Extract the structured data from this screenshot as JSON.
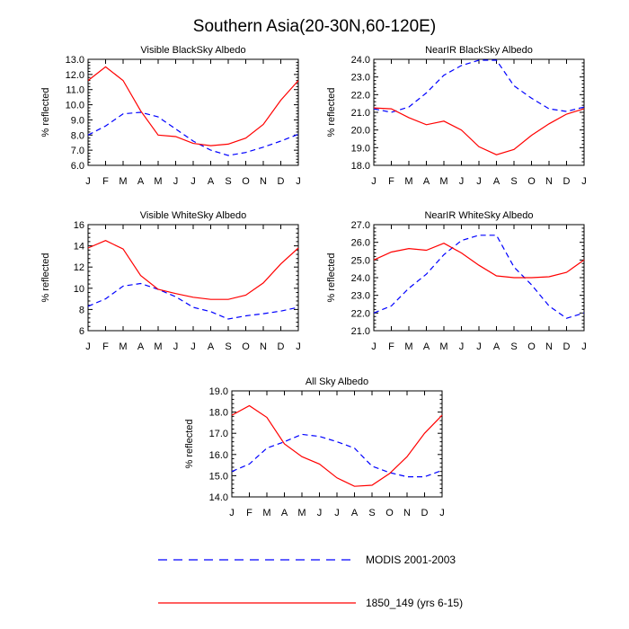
{
  "title": "Southern Asia(20-30N,60-120E)",
  "legend": {
    "items": [
      {
        "label": "MODIS 2001-2003",
        "color": "#0000ff",
        "dash": "dashed"
      },
      {
        "label": "1850_149 (yrs 6-15)",
        "color": "#ff0000",
        "dash": "solid"
      }
    ]
  },
  "chart_data": [
    {
      "type": "line",
      "title": "Visible BlackSky Albedo",
      "ylabel": "% reflected",
      "categories": [
        "J",
        "F",
        "M",
        "A",
        "M",
        "J",
        "J",
        "A",
        "S",
        "O",
        "N",
        "D",
        "J"
      ],
      "ylim": [
        6.0,
        13.0
      ],
      "yticks": [
        "6.0",
        "7.0",
        "8.0",
        "9.0",
        "10.0",
        "11.0",
        "12.0",
        "13.0"
      ],
      "series": [
        {
          "name": "MODIS 2001-2003",
          "values": [
            8.0,
            8.6,
            9.4,
            9.5,
            9.2,
            8.4,
            7.6,
            7.0,
            6.65,
            6.85,
            7.2,
            7.6,
            8.05
          ]
        },
        {
          "name": "1850_149 (yrs 6-15)",
          "values": [
            11.6,
            12.5,
            11.6,
            9.6,
            8.0,
            7.9,
            7.45,
            7.3,
            7.4,
            7.8,
            8.7,
            10.3,
            11.6
          ]
        }
      ]
    },
    {
      "type": "line",
      "title": "NearIR BlackSky Albedo",
      "ylabel": "% reflected",
      "categories": [
        "J",
        "F",
        "M",
        "A",
        "M",
        "J",
        "J",
        "A",
        "S",
        "O",
        "N",
        "D",
        "J"
      ],
      "ylim": [
        18.0,
        24.0
      ],
      "yticks": [
        "18.0",
        "19.0",
        "20.0",
        "21.0",
        "22.0",
        "23.0",
        "24.0"
      ],
      "series": [
        {
          "name": "MODIS 2001-2003",
          "values": [
            21.2,
            21.0,
            21.3,
            22.1,
            23.1,
            23.65,
            23.95,
            23.95,
            22.5,
            21.8,
            21.2,
            21.05,
            21.3
          ]
        },
        {
          "name": "1850_149 (yrs 6-15)",
          "values": [
            21.25,
            21.2,
            20.7,
            20.3,
            20.5,
            20.0,
            19.05,
            18.6,
            18.9,
            19.7,
            20.35,
            20.9,
            21.2
          ]
        }
      ]
    },
    {
      "type": "line",
      "title": "Visible WhiteSky Albedo",
      "ylabel": "% reflected",
      "categories": [
        "J",
        "F",
        "M",
        "A",
        "M",
        "J",
        "J",
        "A",
        "S",
        "O",
        "N",
        "D",
        "J"
      ],
      "ylim": [
        6,
        16
      ],
      "yticks": [
        "6",
        "8",
        "10",
        "12",
        "14",
        "16"
      ],
      "series": [
        {
          "name": "MODIS 2001-2003",
          "values": [
            8.3,
            9.0,
            10.2,
            10.45,
            9.9,
            9.2,
            8.2,
            7.8,
            7.1,
            7.4,
            7.6,
            7.85,
            8.2
          ]
        },
        {
          "name": "1850_149 (yrs 6-15)",
          "values": [
            13.8,
            14.5,
            13.7,
            11.2,
            9.9,
            9.5,
            9.15,
            8.95,
            8.95,
            9.35,
            10.5,
            12.3,
            13.8
          ]
        }
      ]
    },
    {
      "type": "line",
      "title": "NearIR WhiteSky Albedo",
      "ylabel": "% reflected",
      "categories": [
        "J",
        "F",
        "M",
        "A",
        "M",
        "J",
        "J",
        "A",
        "S",
        "O",
        "N",
        "D",
        "J"
      ],
      "ylim": [
        21.0,
        27.0
      ],
      "yticks": [
        "21.0",
        "22.0",
        "23.0",
        "24.0",
        "25.0",
        "26.0",
        "27.0"
      ],
      "series": [
        {
          "name": "MODIS 2001-2003",
          "values": [
            22.0,
            22.4,
            23.4,
            24.2,
            25.3,
            26.1,
            26.4,
            26.4,
            24.6,
            23.6,
            22.4,
            21.7,
            22.0
          ]
        },
        {
          "name": "1850_149 (yrs 6-15)",
          "values": [
            25.0,
            25.45,
            25.65,
            25.55,
            25.95,
            25.4,
            24.7,
            24.1,
            24.0,
            24.0,
            24.05,
            24.3,
            25.0
          ]
        }
      ]
    },
    {
      "type": "line",
      "title": "All Sky Albedo",
      "ylabel": "% reflected",
      "categories": [
        "J",
        "F",
        "M",
        "A",
        "M",
        "J",
        "J",
        "A",
        "S",
        "O",
        "N",
        "D",
        "J"
      ],
      "ylim": [
        14.0,
        19.0
      ],
      "yticks": [
        "14.0",
        "15.0",
        "16.0",
        "17.0",
        "18.0",
        "19.0"
      ],
      "series": [
        {
          "name": "MODIS 2001-2003",
          "values": [
            15.2,
            15.55,
            16.3,
            16.6,
            16.95,
            16.85,
            16.6,
            16.3,
            15.45,
            15.15,
            14.95,
            14.95,
            15.25
          ]
        },
        {
          "name": "1850_149 (yrs 6-15)",
          "values": [
            17.85,
            18.3,
            17.75,
            16.5,
            15.9,
            15.55,
            14.9,
            14.5,
            14.55,
            15.1,
            15.9,
            17.0,
            17.85
          ]
        }
      ]
    }
  ]
}
